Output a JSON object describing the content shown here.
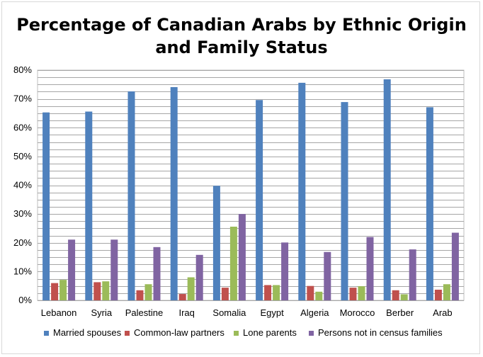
{
  "chart_data": {
    "type": "bar",
    "title_line1": "Percentage of Canadian Arabs by Ethnic Origin",
    "title_line2": "and Family Status",
    "categories": [
      "Lebanon",
      "Syria",
      "Palestine",
      "Iraq",
      "Somalia",
      "Egypt",
      "Algeria",
      "Morocco",
      "Berber",
      "Arab"
    ],
    "series": [
      {
        "name": "Married spouses",
        "color": "#4f81bd",
        "values": [
          65.3,
          65.6,
          72.6,
          74.1,
          39.8,
          69.6,
          75.6,
          68.9,
          76.8,
          67.1
        ]
      },
      {
        "name": "Common-law partners",
        "color": "#c0504d",
        "values": [
          6.0,
          6.3,
          3.5,
          2.2,
          4.4,
          5.3,
          5.0,
          4.4,
          3.5,
          3.7
        ]
      },
      {
        "name": "Lone parents",
        "color": "#9bbb59",
        "values": [
          7.1,
          6.6,
          5.6,
          8.0,
          25.6,
          5.3,
          3.0,
          4.9,
          2.1,
          5.6
        ]
      },
      {
        "name": "Persons not in census families",
        "color": "#8064a2",
        "values": [
          21.1,
          21.1,
          18.5,
          15.8,
          30.0,
          20.1,
          16.8,
          22.0,
          17.7,
          23.5
        ]
      }
    ],
    "ylim": [
      0,
      80
    ],
    "yticks": [
      "0%",
      "10%",
      "20%",
      "30%",
      "40%",
      "50%",
      "60%",
      "70%",
      "80%"
    ],
    "grid": true,
    "legend_position": "bottom"
  }
}
